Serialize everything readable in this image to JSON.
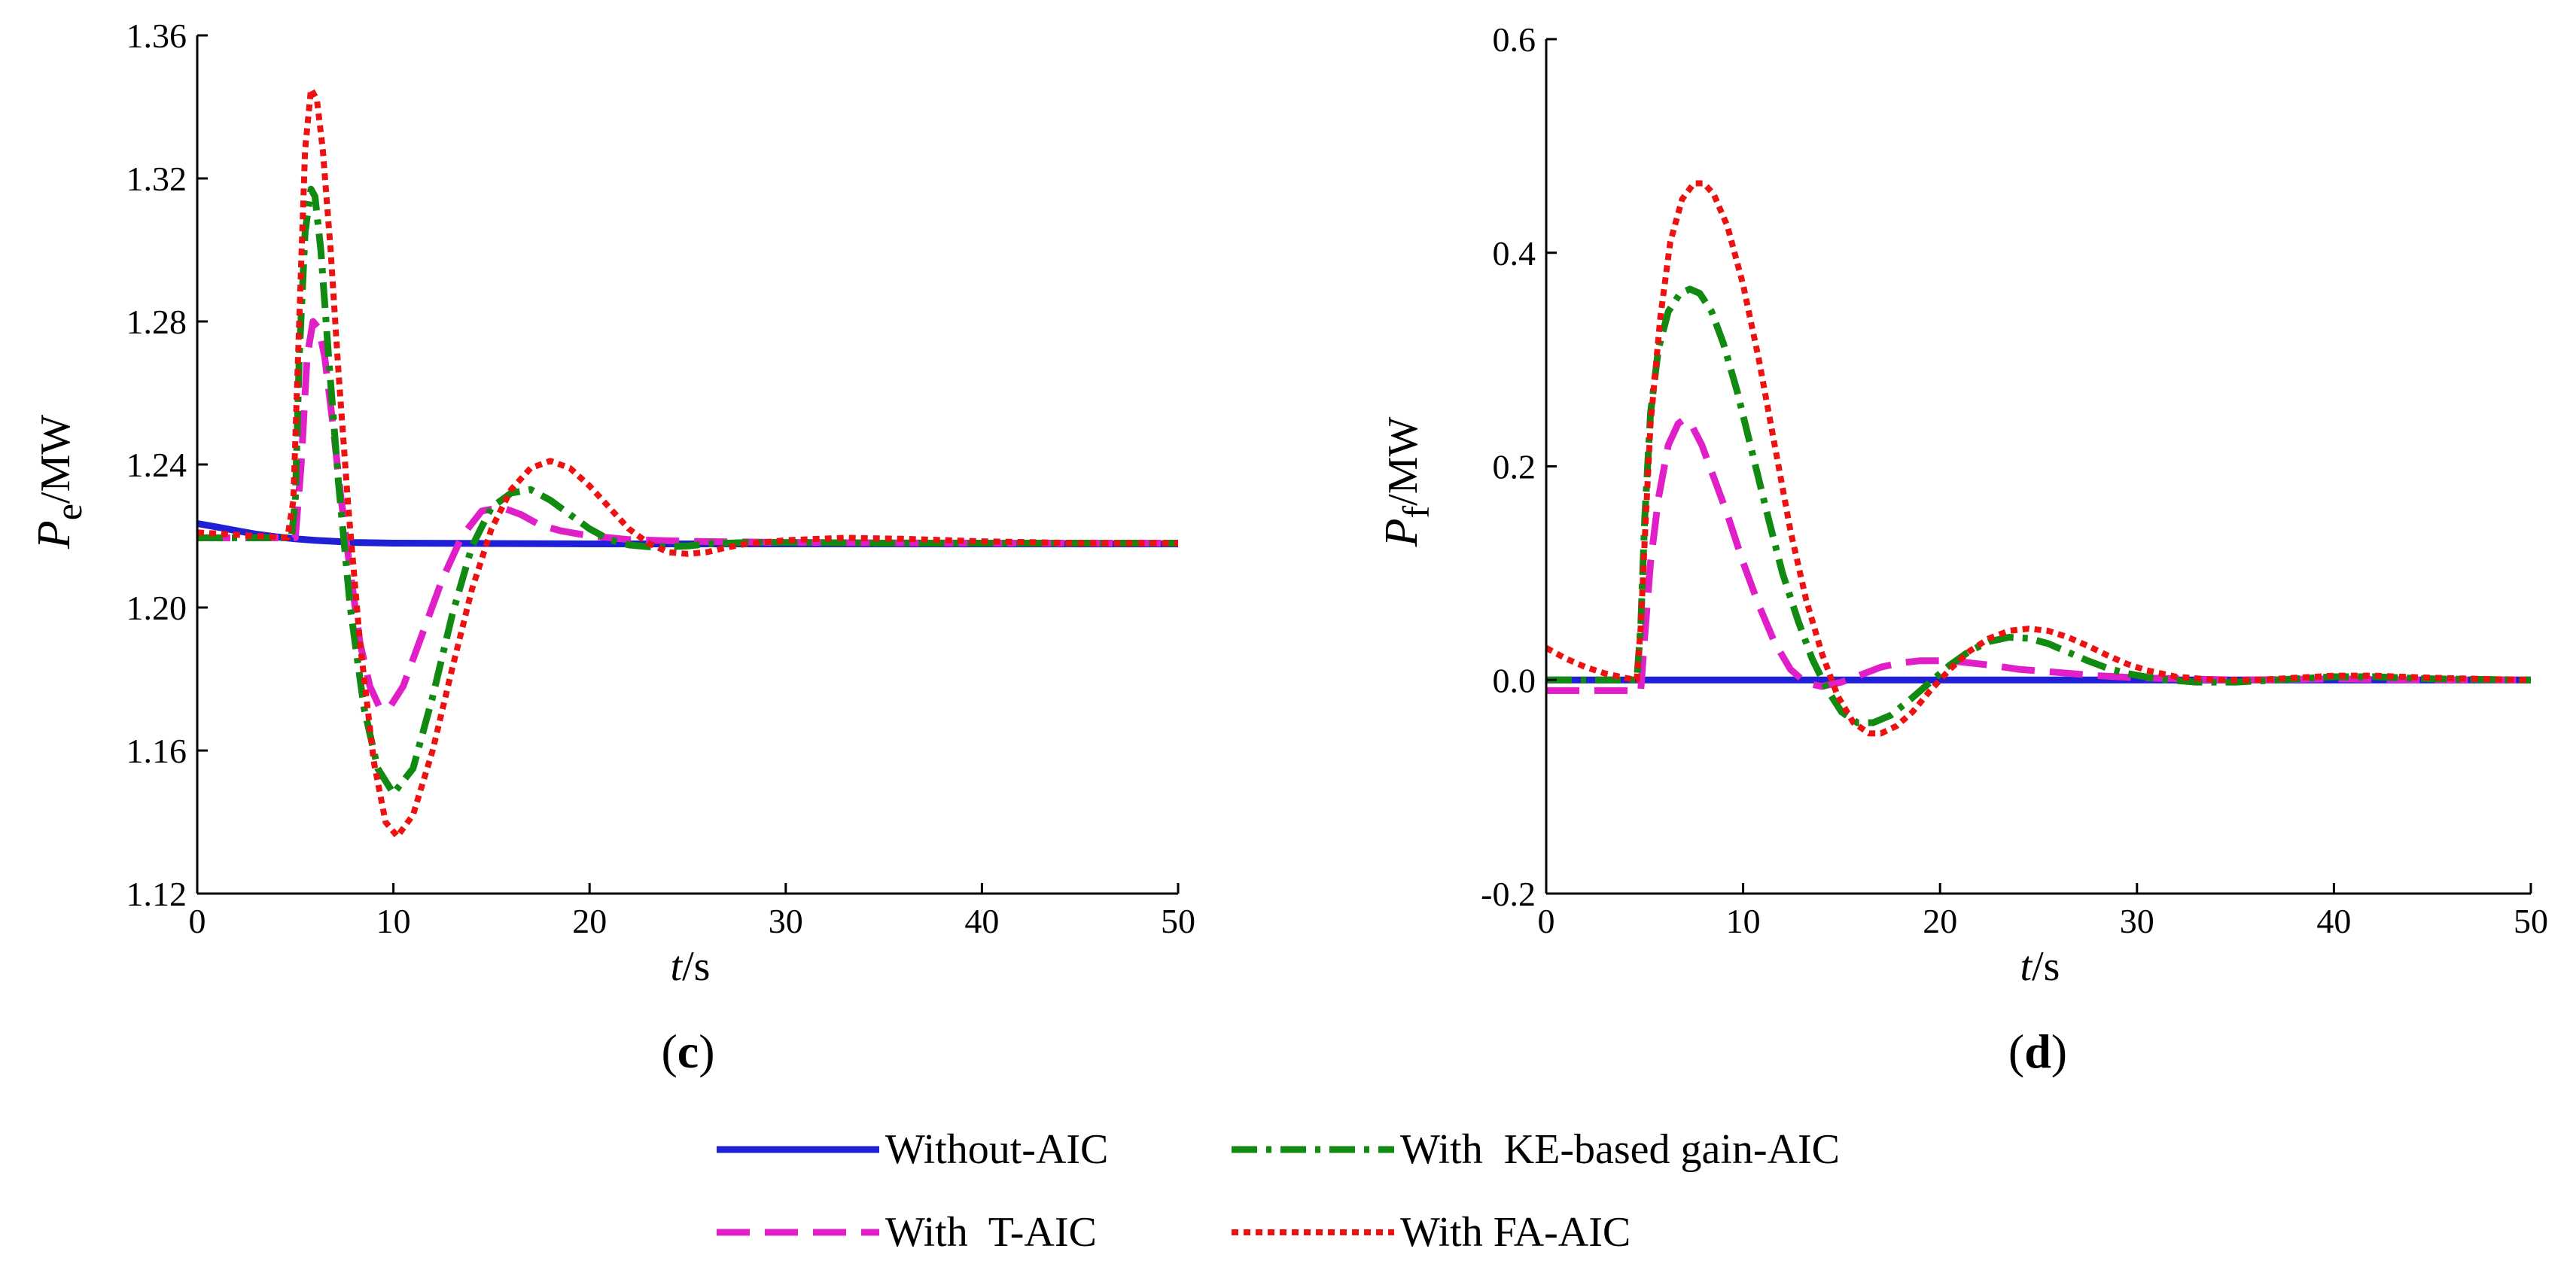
{
  "chart_data": [
    {
      "type": "line",
      "panel_label_parts": [
        "(",
        "c",
        ")"
      ],
      "ylabel_parts": {
        "main": "P",
        "sub": "e",
        "unit": "/MW"
      },
      "xlabel_parts": {
        "main": "t",
        "unit": "/s"
      },
      "xlim": [
        0,
        50
      ],
      "ylim": [
        1.12,
        1.36
      ],
      "xticks": [
        "0",
        "10",
        "20",
        "30",
        "40",
        "50"
      ],
      "yticks": [
        "1.12",
        "1.16",
        "1.20",
        "1.24",
        "1.28",
        "1.32",
        "1.36"
      ],
      "grid": false,
      "series": [
        {
          "name": "Without-AIC",
          "color": "#1f1fd6",
          "x": [
            0,
            1,
            2,
            3,
            4,
            5,
            6,
            7,
            8,
            10,
            15,
            20,
            30,
            40,
            50
          ],
          "y": [
            1.2235,
            1.2225,
            1.2215,
            1.2205,
            1.2198,
            1.2192,
            1.2188,
            1.2185,
            1.2182,
            1.218,
            1.2179,
            1.2178,
            1.2178,
            1.2178,
            1.2178
          ]
        },
        {
          "name": "With KE-based gain-AIC",
          "color": "#108a10",
          "x": [
            0,
            4.8,
            5.0,
            5.2,
            5.5,
            5.8,
            6.0,
            6.3,
            6.7,
            7.2,
            7.8,
            8.5,
            9.2,
            10.0,
            11.0,
            12.0,
            13.0,
            14.0,
            15.0,
            16.0,
            17.0,
            18.0,
            19.0,
            20.0,
            21.0,
            22.0,
            23.0,
            24.0,
            25.0,
            26.0,
            28.0,
            30.0,
            35.0,
            40.0,
            45.0,
            50.0
          ],
          "y": [
            1.2195,
            1.2195,
            1.23,
            1.27,
            1.305,
            1.317,
            1.315,
            1.3,
            1.27,
            1.235,
            1.2,
            1.172,
            1.155,
            1.148,
            1.155,
            1.175,
            1.198,
            1.217,
            1.228,
            1.232,
            1.233,
            1.23,
            1.226,
            1.222,
            1.219,
            1.2175,
            1.217,
            1.217,
            1.2172,
            1.2178,
            1.2182,
            1.2182,
            1.218,
            1.218,
            1.218,
            1.218
          ]
        },
        {
          "name": "With T-AIC",
          "color": "#e01fc8",
          "x": [
            0,
            5.0,
            5.3,
            5.6,
            5.9,
            6.2,
            6.5,
            6.9,
            7.3,
            7.8,
            8.3,
            8.8,
            9.3,
            9.8,
            10.5,
            11.5,
            12.5,
            13.5,
            14.5,
            15.5,
            16.5,
            17.5,
            18.5,
            19.5,
            20.5,
            22.0,
            25.0,
            30.0,
            40.0,
            50.0
          ],
          "y": [
            1.2195,
            1.2195,
            1.24,
            1.27,
            1.28,
            1.278,
            1.27,
            1.252,
            1.232,
            1.21,
            1.19,
            1.178,
            1.172,
            1.172,
            1.178,
            1.193,
            1.208,
            1.22,
            1.227,
            1.228,
            1.226,
            1.223,
            1.2215,
            1.2205,
            1.2198,
            1.219,
            1.2185,
            1.2182,
            1.218,
            1.218
          ]
        },
        {
          "name": "With FA-AIC",
          "color": "#ee1111",
          "x": [
            0,
            4.6,
            4.9,
            5.2,
            5.5,
            5.8,
            6.1,
            6.4,
            6.8,
            7.2,
            7.7,
            8.3,
            9.0,
            9.6,
            10.2,
            11.0,
            12.0,
            13.0,
            14.0,
            15.0,
            16.0,
            17.0,
            18.0,
            19.0,
            20.0,
            21.0,
            22.0,
            23.0,
            24.0,
            25.0,
            26.0,
            27.0,
            28.0,
            30.0,
            33.0,
            36.0,
            40.0,
            45.0,
            50.0
          ],
          "y": [
            1.221,
            1.2195,
            1.23,
            1.28,
            1.328,
            1.345,
            1.342,
            1.328,
            1.3,
            1.266,
            1.228,
            1.19,
            1.157,
            1.14,
            1.136,
            1.142,
            1.16,
            1.183,
            1.205,
            1.222,
            1.233,
            1.239,
            1.241,
            1.239,
            1.234,
            1.228,
            1.222,
            1.218,
            1.2155,
            1.215,
            1.2155,
            1.2168,
            1.2178,
            1.2188,
            1.2195,
            1.2192,
            1.2185,
            1.218,
            1.218
          ]
        }
      ]
    },
    {
      "type": "line",
      "panel_label_parts": [
        "(",
        "d",
        ")"
      ],
      "ylabel_parts": {
        "main": "P",
        "sub": "f",
        "unit": "/MW"
      },
      "xlabel_parts": {
        "main": "t",
        "unit": "/s"
      },
      "xlim": [
        0,
        50
      ],
      "ylim": [
        -0.2,
        0.6
      ],
      "xticks": [
        "0",
        "10",
        "20",
        "30",
        "40",
        "50"
      ],
      "yticks": [
        "-0.2",
        "0.0",
        "0.2",
        "0.4",
        "0.6"
      ],
      "grid": false,
      "series": [
        {
          "name": "Without-AIC",
          "color": "#1f1fd6",
          "x": [
            0,
            10,
            20,
            30,
            40,
            50
          ],
          "y": [
            0.0,
            0.0,
            0.0,
            0.0,
            0.0,
            0.0
          ]
        },
        {
          "name": "With KE-based gain-AIC",
          "color": "#108a10",
          "x": [
            0,
            4.6,
            4.8,
            5.0,
            5.3,
            5.7,
            6.2,
            6.8,
            7.3,
            7.8,
            8.4,
            9.0,
            9.7,
            10.5,
            11.3,
            12.0,
            12.8,
            13.5,
            14.3,
            15.0,
            15.8,
            16.6,
            17.5,
            18.5,
            19.5,
            20.5,
            21.5,
            22.5,
            23.5,
            24.5,
            25.5,
            26.5,
            27.5,
            28.5,
            29.5,
            31.0,
            33.0,
            35.0,
            37.0,
            40.0,
            42.0,
            45.0,
            50.0
          ],
          "y": [
            0.0,
            0.0,
            0.05,
            0.15,
            0.25,
            0.31,
            0.345,
            0.362,
            0.366,
            0.362,
            0.345,
            0.315,
            0.27,
            0.21,
            0.15,
            0.1,
            0.055,
            0.02,
            -0.01,
            -0.03,
            -0.04,
            -0.04,
            -0.033,
            -0.018,
            -0.002,
            0.014,
            0.027,
            0.036,
            0.04,
            0.039,
            0.034,
            0.026,
            0.018,
            0.011,
            0.006,
            0.001,
            -0.002,
            -0.002,
            0.0,
            0.003,
            0.003,
            0.001,
            0.0
          ]
        },
        {
          "name": "With T-AIC",
          "color": "#e01fc8",
          "x": [
            0,
            4.8,
            5.0,
            5.3,
            5.7,
            6.2,
            6.7,
            7.0,
            7.4,
            7.9,
            8.5,
            9.2,
            10.0,
            10.8,
            11.6,
            12.4,
            13.2,
            14.0,
            15.0,
            16.0,
            17.0,
            18.0,
            19.0,
            20.0,
            21.0,
            22.5,
            24.0,
            26.0,
            28.0,
            30.0,
            35.0,
            40.0,
            45.0,
            50.0
          ],
          "y": [
            -0.01,
            -0.01,
            0.04,
            0.11,
            0.17,
            0.22,
            0.24,
            0.244,
            0.238,
            0.22,
            0.19,
            0.155,
            0.11,
            0.07,
            0.035,
            0.01,
            -0.003,
            -0.006,
            -0.002,
            0.005,
            0.012,
            0.016,
            0.018,
            0.018,
            0.017,
            0.014,
            0.01,
            0.007,
            0.004,
            0.002,
            0.0,
            0.001,
            0.0,
            0.0
          ]
        },
        {
          "name": "With FA-AIC",
          "color": "#ee1111",
          "x": [
            0,
            1.0,
            2.0,
            3.0,
            4.0,
            4.6,
            4.8,
            5.0,
            5.3,
            5.8,
            6.3,
            6.9,
            7.5,
            8.0,
            8.5,
            9.2,
            10.0,
            10.8,
            11.6,
            12.4,
            13.2,
            14.0,
            14.8,
            15.6,
            16.4,
            17.0,
            17.8,
            18.6,
            19.5,
            20.5,
            21.5,
            22.5,
            23.5,
            24.5,
            25.5,
            26.5,
            27.5,
            28.5,
            29.5,
            30.5,
            32.0,
            34.0,
            36.0,
            38.0,
            40.0,
            42.0,
            45.0,
            50.0
          ],
          "y": [
            0.03,
            0.02,
            0.012,
            0.006,
            0.002,
            0.0,
            0.05,
            0.13,
            0.24,
            0.34,
            0.41,
            0.45,
            0.465,
            0.465,
            0.455,
            0.425,
            0.37,
            0.3,
            0.22,
            0.14,
            0.075,
            0.025,
            -0.015,
            -0.04,
            -0.05,
            -0.05,
            -0.043,
            -0.03,
            -0.01,
            0.01,
            0.027,
            0.039,
            0.046,
            0.048,
            0.046,
            0.04,
            0.032,
            0.023,
            0.015,
            0.009,
            0.003,
            0.0,
            0.0,
            0.002,
            0.004,
            0.004,
            0.002,
            0.0
          ]
        }
      ]
    }
  ],
  "legend": {
    "placement": "bottom-center",
    "entries": [
      {
        "label": "Without-AIC",
        "series": "Without-AIC"
      },
      {
        "label": "With  KE-based gain-AIC",
        "series": "With KE-based gain-AIC"
      },
      {
        "label": "With  T-AIC",
        "series": "With T-AIC"
      },
      {
        "label": "With FA-AIC",
        "series": "With FA-AIC"
      }
    ]
  }
}
